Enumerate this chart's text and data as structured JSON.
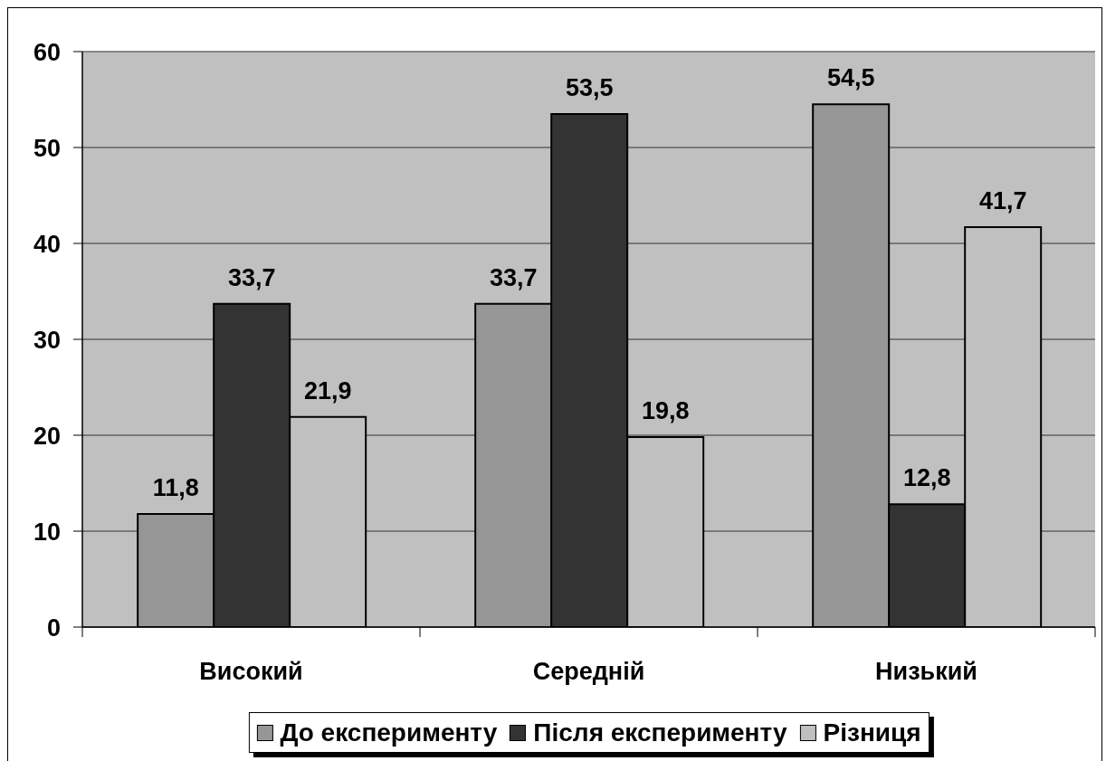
{
  "chart_data": {
    "type": "bar",
    "categories": [
      "Високий",
      "Середній",
      "Низький"
    ],
    "series": [
      {
        "name": "До експерименту",
        "color": "#969696",
        "values": [
          11.8,
          33.7,
          54.5
        ],
        "value_labels": [
          "11,8",
          "33,7",
          "54,5"
        ]
      },
      {
        "name": "Після експерименту",
        "color": "#333333",
        "values": [
          33.7,
          53.5,
          12.8
        ],
        "value_labels": [
          "33,7",
          "53,5",
          "12,8"
        ]
      },
      {
        "name": "Різниця",
        "color": "#c0c0c0",
        "values": [
          21.9,
          19.8,
          41.7
        ],
        "value_labels": [
          "21,9",
          "19,8",
          "41,7"
        ]
      }
    ],
    "ylim": [
      0,
      60
    ],
    "yticks": [
      0,
      10,
      20,
      30,
      40,
      50,
      60
    ],
    "grid": "y",
    "legend": "bottom"
  }
}
